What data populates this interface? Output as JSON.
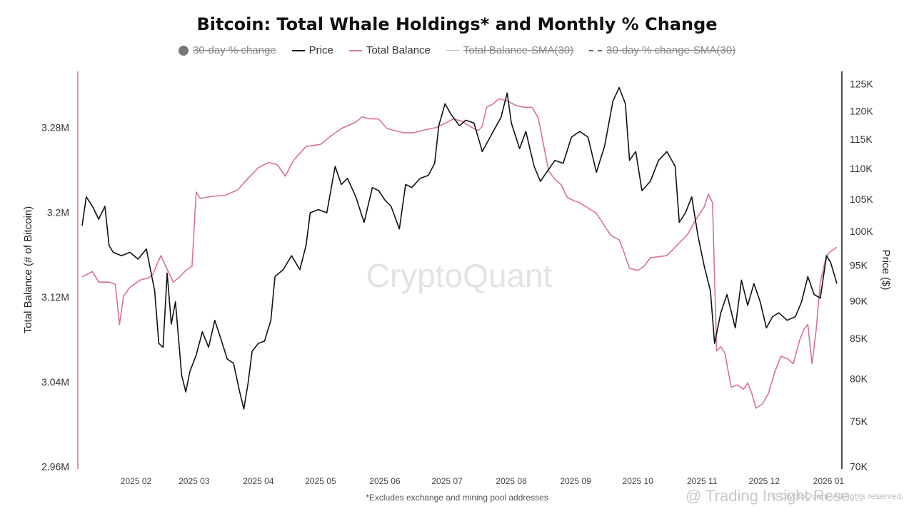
{
  "chart_data": {
    "type": "line",
    "title": "Bitcoin: Total Whale Holdings* and Monthly % Change",
    "watermark": "CryptoQuant",
    "footnote": "*Excludes exchange and mining pool addresses",
    "copyright": "© CryptoQuant. All rights reserved.",
    "overlay_watermark": "@ Trading Insight Rese...",
    "legend": [
      {
        "label": "30-day % change",
        "visible": false,
        "marker": "dot"
      },
      {
        "label": "Price",
        "visible": true,
        "marker": "line"
      },
      {
        "label": "Total Balance",
        "visible": true,
        "marker": "line"
      },
      {
        "label": "Total Balance-SMA(30)",
        "visible": false,
        "marker": "thin-line"
      },
      {
        "label": "30-day % change-SMA(30)",
        "visible": false,
        "marker": "dashed-line"
      }
    ],
    "y_left": {
      "label": "Total Balance (# of Bitcoin)",
      "ticks": [
        "2.96M",
        "3.04M",
        "3.12M",
        "3.2M",
        "3.28M"
      ],
      "range": [
        2960000,
        3300000
      ]
    },
    "y_right": {
      "label": "Price ($)",
      "ticks": [
        "70K",
        "75K",
        "80K",
        "85K",
        "90K",
        "95K",
        "100K",
        "105K",
        "110K",
        "115K",
        "120K",
        "125K"
      ],
      "range": [
        70000,
        126000
      ]
    },
    "x_ticks": [
      "2025 02",
      "2025 03",
      "2025 04",
      "2025 05",
      "2025 06",
      "2025 07",
      "2025 08",
      "2025 09",
      "2025 10",
      "2025 11",
      "2025 12",
      "2026 01"
    ],
    "x_range": [
      "2025-01-20",
      "2026-01-19"
    ],
    "grid": false,
    "series": [
      {
        "name": "Price",
        "color": "#111111",
        "axis": "right",
        "points": [
          [
            "2025-01-20",
            101000
          ],
          [
            "2025-01-22",
            105500
          ],
          [
            "2025-01-25",
            104000
          ],
          [
            "2025-01-28",
            102000
          ],
          [
            "2025-01-31",
            104000
          ],
          [
            "2025-02-02",
            98000
          ],
          [
            "2025-02-04",
            97000
          ],
          [
            "2025-02-08",
            96500
          ],
          [
            "2025-02-12",
            97000
          ],
          [
            "2025-02-16",
            96000
          ],
          [
            "2025-02-20",
            97500
          ],
          [
            "2025-02-24",
            91500
          ],
          [
            "2025-02-26",
            84500
          ],
          [
            "2025-02-28",
            84000
          ],
          [
            "2025-03-02",
            94000
          ],
          [
            "2025-03-04",
            87000
          ],
          [
            "2025-03-06",
            90000
          ],
          [
            "2025-03-09",
            80500
          ],
          [
            "2025-03-11",
            78500
          ],
          [
            "2025-03-13",
            81000
          ],
          [
            "2025-03-16",
            83000
          ],
          [
            "2025-03-19",
            86000
          ],
          [
            "2025-03-22",
            84000
          ],
          [
            "2025-03-25",
            87500
          ],
          [
            "2025-03-28",
            85000
          ],
          [
            "2025-03-31",
            82500
          ],
          [
            "2025-04-03",
            82000
          ],
          [
            "2025-04-06",
            78500
          ],
          [
            "2025-04-08",
            76500
          ],
          [
            "2025-04-10",
            79500
          ],
          [
            "2025-04-12",
            83500
          ],
          [
            "2025-04-15",
            84500
          ],
          [
            "2025-04-18",
            84800
          ],
          [
            "2025-04-21",
            87500
          ],
          [
            "2025-04-23",
            93500
          ],
          [
            "2025-04-27",
            94500
          ],
          [
            "2025-05-01",
            96500
          ],
          [
            "2025-05-05",
            94500
          ],
          [
            "2025-05-08",
            98000
          ],
          [
            "2025-05-10",
            103000
          ],
          [
            "2025-05-14",
            103500
          ],
          [
            "2025-05-18",
            103000
          ],
          [
            "2025-05-22",
            110500
          ],
          [
            "2025-05-25",
            107500
          ],
          [
            "2025-05-28",
            108500
          ],
          [
            "2025-06-01",
            105500
          ],
          [
            "2025-06-05",
            101500
          ],
          [
            "2025-06-09",
            107000
          ],
          [
            "2025-06-12",
            106500
          ],
          [
            "2025-06-15",
            105000
          ],
          [
            "2025-06-18",
            104000
          ],
          [
            "2025-06-22",
            100500
          ],
          [
            "2025-06-25",
            107500
          ],
          [
            "2025-06-28",
            107000
          ],
          [
            "2025-07-02",
            108500
          ],
          [
            "2025-07-06",
            109000
          ],
          [
            "2025-07-09",
            111000
          ],
          [
            "2025-07-11",
            117500
          ],
          [
            "2025-07-14",
            121500
          ],
          [
            "2025-07-17",
            119500
          ],
          [
            "2025-07-21",
            117500
          ],
          [
            "2025-07-24",
            118500
          ],
          [
            "2025-07-28",
            118000
          ],
          [
            "2025-08-01",
            113000
          ],
          [
            "2025-08-04",
            115000
          ],
          [
            "2025-08-07",
            117000
          ],
          [
            "2025-08-10",
            119000
          ],
          [
            "2025-08-13",
            123500
          ],
          [
            "2025-08-15",
            118000
          ],
          [
            "2025-08-19",
            113500
          ],
          [
            "2025-08-22",
            116500
          ],
          [
            "2025-08-26",
            110500
          ],
          [
            "2025-08-29",
            108000
          ],
          [
            "2025-09-01",
            109500
          ],
          [
            "2025-09-05",
            111500
          ],
          [
            "2025-09-09",
            111000
          ],
          [
            "2025-09-13",
            115500
          ],
          [
            "2025-09-17",
            116500
          ],
          [
            "2025-09-21",
            115500
          ],
          [
            "2025-09-25",
            109500
          ],
          [
            "2025-09-29",
            114000
          ],
          [
            "2025-10-03",
            122000
          ],
          [
            "2025-10-06",
            124500
          ],
          [
            "2025-10-09",
            121500
          ],
          [
            "2025-10-11",
            111500
          ],
          [
            "2025-10-14",
            113000
          ],
          [
            "2025-10-17",
            106500
          ],
          [
            "2025-10-21",
            108000
          ],
          [
            "2025-10-25",
            111500
          ],
          [
            "2025-10-29",
            113000
          ],
          [
            "2025-11-02",
            110500
          ],
          [
            "2025-11-04",
            101500
          ],
          [
            "2025-11-07",
            103000
          ],
          [
            "2025-11-10",
            105500
          ],
          [
            "2025-11-13",
            99500
          ],
          [
            "2025-11-16",
            95000
          ],
          [
            "2025-11-19",
            91500
          ],
          [
            "2025-11-21",
            84500
          ],
          [
            "2025-11-24",
            88500
          ],
          [
            "2025-11-27",
            91000
          ],
          [
            "2025-12-01",
            86500
          ],
          [
            "2025-12-04",
            93000
          ],
          [
            "2025-12-07",
            89500
          ],
          [
            "2025-12-10",
            92500
          ],
          [
            "2025-12-13",
            90000
          ],
          [
            "2025-12-16",
            86500
          ],
          [
            "2025-12-19",
            88000
          ],
          [
            "2025-12-22",
            88500
          ],
          [
            "2025-12-26",
            87500
          ],
          [
            "2025-12-30",
            88000
          ],
          [
            "2026-01-02",
            90000
          ],
          [
            "2026-01-05",
            93500
          ],
          [
            "2026-01-08",
            91000
          ],
          [
            "2026-01-11",
            90500
          ],
          [
            "2026-01-14",
            96500
          ],
          [
            "2026-01-16",
            95500
          ],
          [
            "2026-01-19",
            92500
          ]
        ]
      },
      {
        "name": "Total Balance",
        "color": "#d9728f",
        "axis": "left",
        "points": [
          [
            "2025-01-20",
            3140000
          ],
          [
            "2025-01-25",
            3145000
          ],
          [
            "2025-01-28",
            3135000
          ],
          [
            "2025-02-02",
            3135000
          ],
          [
            "2025-02-05",
            3133000
          ],
          [
            "2025-02-07",
            3095000
          ],
          [
            "2025-02-09",
            3122000
          ],
          [
            "2025-02-12",
            3130000
          ],
          [
            "2025-02-17",
            3137000
          ],
          [
            "2025-02-21",
            3139000
          ],
          [
            "2025-02-23",
            3142000
          ],
          [
            "2025-02-27",
            3160000
          ],
          [
            "2025-03-02",
            3147000
          ],
          [
            "2025-03-05",
            3135000
          ],
          [
            "2025-03-08",
            3140000
          ],
          [
            "2025-03-11",
            3146000
          ],
          [
            "2025-03-14",
            3150000
          ],
          [
            "2025-03-16",
            3220000
          ],
          [
            "2025-03-18",
            3214000
          ],
          [
            "2025-03-24",
            3216000
          ],
          [
            "2025-03-30",
            3217000
          ],
          [
            "2025-04-05",
            3222000
          ],
          [
            "2025-04-10",
            3233000
          ],
          [
            "2025-04-15",
            3243000
          ],
          [
            "2025-04-20",
            3248000
          ],
          [
            "2025-04-24",
            3246000
          ],
          [
            "2025-04-28",
            3235000
          ],
          [
            "2025-05-02",
            3250000
          ],
          [
            "2025-05-08",
            3263000
          ],
          [
            "2025-05-15",
            3265000
          ],
          [
            "2025-05-20",
            3273000
          ],
          [
            "2025-05-25",
            3280000
          ],
          [
            "2025-06-01",
            3286000
          ],
          [
            "2025-06-04",
            3291000
          ],
          [
            "2025-06-08",
            3289000
          ],
          [
            "2025-06-12",
            3289000
          ],
          [
            "2025-06-16",
            3280000
          ],
          [
            "2025-06-20",
            3278000
          ],
          [
            "2025-06-24",
            3276000
          ],
          [
            "2025-06-29",
            3276000
          ],
          [
            "2025-07-05",
            3279000
          ],
          [
            "2025-07-10",
            3281000
          ],
          [
            "2025-07-14",
            3285000
          ],
          [
            "2025-07-18",
            3289000
          ],
          [
            "2025-07-22",
            3287000
          ],
          [
            "2025-07-26",
            3282000
          ],
          [
            "2025-07-30",
            3278000
          ],
          [
            "2025-08-01",
            3282000
          ],
          [
            "2025-08-03",
            3300000
          ],
          [
            "2025-08-06",
            3303000
          ],
          [
            "2025-08-09",
            3308000
          ],
          [
            "2025-08-13",
            3306000
          ],
          [
            "2025-08-17",
            3302000
          ],
          [
            "2025-08-21",
            3300000
          ],
          [
            "2025-08-25",
            3300000
          ],
          [
            "2025-08-28",
            3290000
          ],
          [
            "2025-09-02",
            3240000
          ],
          [
            "2025-09-05",
            3232000
          ],
          [
            "2025-09-08",
            3227000
          ],
          [
            "2025-09-11",
            3215000
          ],
          [
            "2025-09-14",
            3212000
          ],
          [
            "2025-09-17",
            3210000
          ],
          [
            "2025-09-21",
            3205000
          ],
          [
            "2025-09-25",
            3200000
          ],
          [
            "2025-09-29",
            3188000
          ],
          [
            "2025-10-02",
            3179000
          ],
          [
            "2025-10-06",
            3175000
          ],
          [
            "2025-10-08",
            3165000
          ],
          [
            "2025-10-11",
            3148000
          ],
          [
            "2025-10-15",
            3146000
          ],
          [
            "2025-10-18",
            3150000
          ],
          [
            "2025-10-21",
            3158000
          ],
          [
            "2025-10-25",
            3159000
          ],
          [
            "2025-10-29",
            3160000
          ],
          [
            "2025-11-01",
            3166000
          ],
          [
            "2025-11-04",
            3172000
          ],
          [
            "2025-11-08",
            3180000
          ],
          [
            "2025-11-12",
            3194000
          ],
          [
            "2025-11-16",
            3206000
          ],
          [
            "2025-11-18",
            3218000
          ],
          [
            "2025-11-20",
            3210000
          ],
          [
            "2025-11-22",
            3070000
          ],
          [
            "2025-11-24",
            3074000
          ],
          [
            "2025-11-26",
            3068000
          ],
          [
            "2025-11-29",
            3036000
          ],
          [
            "2025-12-02",
            3038000
          ],
          [
            "2025-12-05",
            3034000
          ],
          [
            "2025-12-07",
            3040000
          ],
          [
            "2025-12-09",
            3030000
          ],
          [
            "2025-12-11",
            3016000
          ],
          [
            "2025-12-14",
            3020000
          ],
          [
            "2025-12-17",
            3030000
          ],
          [
            "2025-12-20",
            3050000
          ],
          [
            "2025-12-23",
            3065000
          ],
          [
            "2025-12-26",
            3063000
          ],
          [
            "2025-12-29",
            3058000
          ],
          [
            "2026-01-01",
            3080000
          ],
          [
            "2026-01-03",
            3090000
          ],
          [
            "2026-01-05",
            3095000
          ],
          [
            "2026-01-07",
            3058000
          ],
          [
            "2026-01-09",
            3090000
          ],
          [
            "2026-01-11",
            3135000
          ],
          [
            "2026-01-14",
            3160000
          ],
          [
            "2026-01-16",
            3164000
          ],
          [
            "2026-01-19",
            3168000
          ]
        ]
      }
    ]
  }
}
